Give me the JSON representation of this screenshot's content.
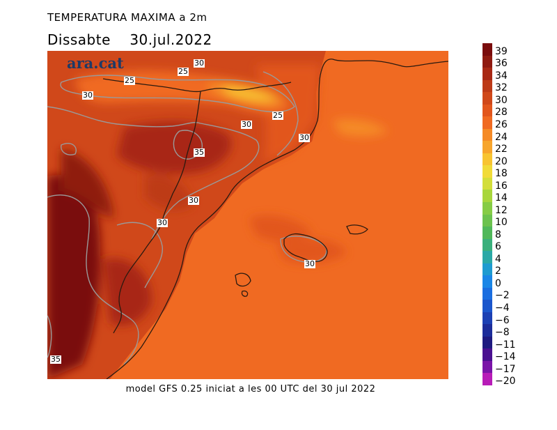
{
  "title": "TEMPERATURA MAXIMA a 2m",
  "subtitle": "Dissabte    30.jul.2022",
  "brand": "ara.cat",
  "footer": "model GFS 0.25 iniciat a les 00 UTC del 30 jul 2022",
  "colorbar": [
    {
      "label": "39",
      "color": "#7a0c0c"
    },
    {
      "label": "36",
      "color": "#8f1a10"
    },
    {
      "label": "34",
      "color": "#a82814"
    },
    {
      "label": "32",
      "color": "#bd3a17"
    },
    {
      "label": "30",
      "color": "#d0481a"
    },
    {
      "label": "28",
      "color": "#e2561d"
    },
    {
      "label": "26",
      "color": "#f06a22"
    },
    {
      "label": "24",
      "color": "#f58a26"
    },
    {
      "label": "22",
      "color": "#f7a52c"
    },
    {
      "label": "20",
      "color": "#f8c431"
    },
    {
      "label": "18",
      "color": "#f1db38"
    },
    {
      "label": "16",
      "color": "#d3de3a"
    },
    {
      "label": "14",
      "color": "#a8d63c"
    },
    {
      "label": "12",
      "color": "#86cc45"
    },
    {
      "label": "10",
      "color": "#6cc24e"
    },
    {
      "label": "8",
      "color": "#50b85a"
    },
    {
      "label": "6",
      "color": "#3ab07c"
    },
    {
      "label": "4",
      "color": "#2aa8a6"
    },
    {
      "label": "2",
      "color": "#1e9bd0"
    },
    {
      "label": "0",
      "color": "#1a86e6"
    },
    {
      "label": "−2",
      "color": "#1a6ee0"
    },
    {
      "label": "−4",
      "color": "#1b56cc"
    },
    {
      "label": "−6",
      "color": "#1c40b4"
    },
    {
      "label": "−8",
      "color": "#1c2c9a"
    },
    {
      "label": "−11",
      "color": "#1e1a80"
    },
    {
      "label": "−14",
      "color": "#4a1090"
    },
    {
      "label": "−17",
      "color": "#7a14a8"
    },
    {
      "label": "−20",
      "color": "#b81cb8"
    }
  ],
  "isotherm_labels": [
    "30",
    "25",
    "25",
    "30",
    "30",
    "25",
    "30",
    "35",
    "30",
    "30",
    "30",
    "35"
  ]
}
